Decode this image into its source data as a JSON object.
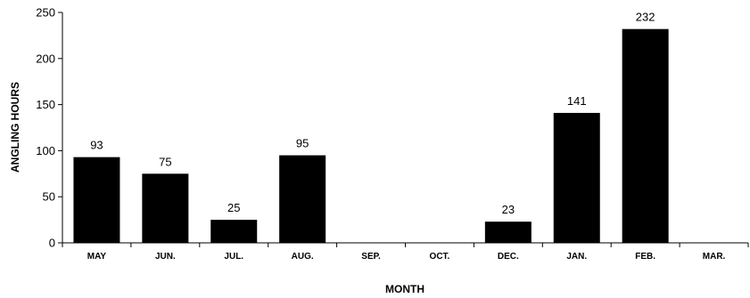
{
  "chart_data": {
    "type": "bar",
    "categories": [
      "MAY",
      "JUN.",
      "JUL.",
      "AUG.",
      "SEP.",
      "OCT.",
      "DEC.",
      "JAN.",
      "FEB.",
      "MAR."
    ],
    "values": [
      93,
      75,
      25,
      95,
      null,
      null,
      23,
      141,
      232,
      null
    ],
    "data_labels": [
      "93",
      "75",
      "25",
      "95",
      "",
      "",
      "23",
      "141",
      "232",
      ""
    ],
    "xlabel": "MONTH",
    "ylabel": "ANGLING HOURS",
    "ylim": [
      0,
      250
    ],
    "yticks": [
      0,
      50,
      100,
      150,
      200,
      250
    ],
    "grid": false,
    "bar_color": "#000000"
  }
}
